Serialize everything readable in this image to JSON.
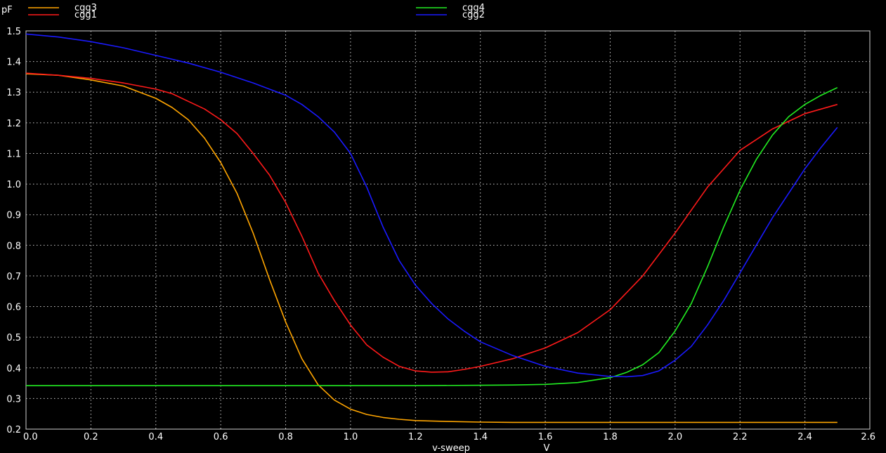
{
  "chart_data": {
    "type": "line",
    "title": "",
    "xlabel": "v-sweep",
    "xunit": "V",
    "ylabel": "",
    "yunit": "pF",
    "xlim": [
      0.0,
      2.6
    ],
    "ylim": [
      0.2,
      1.5
    ],
    "xticks": [
      "0.0",
      "0.2",
      "0.4",
      "0.6",
      "0.8",
      "1.0",
      "1.2",
      "1.4",
      "1.6",
      "1.8",
      "2.0",
      "2.2",
      "2.4",
      "2.6"
    ],
    "yticks": [
      "0.2",
      "0.3",
      "0.4",
      "0.5",
      "0.6",
      "0.7",
      "0.8",
      "0.9",
      "1.0",
      "1.1",
      "1.2",
      "1.3",
      "1.4",
      "1.5"
    ],
    "grid": true,
    "legend_position": "top",
    "background": "#000000",
    "series": [
      {
        "name": "cgg3",
        "color": "#ffa500",
        "x": [
          0.0,
          0.1,
          0.2,
          0.3,
          0.4,
          0.45,
          0.5,
          0.55,
          0.6,
          0.65,
          0.7,
          0.75,
          0.8,
          0.85,
          0.9,
          0.95,
          1.0,
          1.05,
          1.1,
          1.15,
          1.2,
          1.3,
          1.4,
          1.5,
          1.6,
          1.8,
          2.0,
          2.2,
          2.4,
          2.5
        ],
        "y": [
          1.36,
          1.355,
          1.34,
          1.32,
          1.28,
          1.25,
          1.21,
          1.15,
          1.07,
          0.97,
          0.84,
          0.69,
          0.55,
          0.43,
          0.345,
          0.295,
          0.265,
          0.248,
          0.238,
          0.232,
          0.228,
          0.225,
          0.223,
          0.222,
          0.222,
          0.222,
          0.222,
          0.222,
          0.222,
          0.222
        ]
      },
      {
        "name": "cgg1",
        "color": "#ff1a1a",
        "x": [
          0.0,
          0.1,
          0.2,
          0.3,
          0.4,
          0.45,
          0.5,
          0.55,
          0.6,
          0.65,
          0.7,
          0.75,
          0.8,
          0.85,
          0.9,
          0.95,
          1.0,
          1.05,
          1.1,
          1.15,
          1.2,
          1.25,
          1.3,
          1.35,
          1.4,
          1.5,
          1.6,
          1.7,
          1.8,
          1.9,
          2.0,
          2.1,
          2.2,
          2.3,
          2.4,
          2.5
        ],
        "y": [
          1.362,
          1.355,
          1.345,
          1.33,
          1.31,
          1.295,
          1.27,
          1.245,
          1.21,
          1.165,
          1.1,
          1.03,
          0.94,
          0.83,
          0.71,
          0.62,
          0.54,
          0.475,
          0.435,
          0.405,
          0.39,
          0.386,
          0.387,
          0.395,
          0.405,
          0.43,
          0.465,
          0.515,
          0.59,
          0.7,
          0.84,
          0.99,
          1.11,
          1.18,
          1.23,
          1.26
        ]
      },
      {
        "name": "cgg4",
        "color": "#22ee22",
        "x": [
          0.0,
          0.2,
          0.4,
          0.6,
          0.8,
          1.0,
          1.2,
          1.4,
          1.5,
          1.6,
          1.7,
          1.8,
          1.85,
          1.9,
          1.95,
          2.0,
          2.05,
          2.1,
          2.15,
          2.2,
          2.25,
          2.3,
          2.35,
          2.4,
          2.45,
          2.5
        ],
        "y": [
          0.342,
          0.342,
          0.342,
          0.342,
          0.342,
          0.342,
          0.342,
          0.343,
          0.344,
          0.346,
          0.352,
          0.368,
          0.385,
          0.41,
          0.45,
          0.52,
          0.61,
          0.73,
          0.86,
          0.98,
          1.08,
          1.16,
          1.22,
          1.26,
          1.29,
          1.315
        ]
      },
      {
        "name": "cgg2",
        "color": "#1a1aff",
        "x": [
          0.0,
          0.1,
          0.2,
          0.3,
          0.4,
          0.5,
          0.6,
          0.7,
          0.8,
          0.85,
          0.9,
          0.95,
          1.0,
          1.05,
          1.1,
          1.15,
          1.2,
          1.25,
          1.3,
          1.35,
          1.4,
          1.5,
          1.6,
          1.7,
          1.8,
          1.85,
          1.9,
          1.95,
          2.0,
          2.05,
          2.1,
          2.15,
          2.2,
          2.25,
          2.3,
          2.35,
          2.4,
          2.45,
          2.5
        ],
        "y": [
          1.49,
          1.48,
          1.465,
          1.445,
          1.42,
          1.395,
          1.365,
          1.33,
          1.29,
          1.26,
          1.22,
          1.17,
          1.1,
          0.99,
          0.86,
          0.75,
          0.67,
          0.61,
          0.56,
          0.52,
          0.485,
          0.44,
          0.405,
          0.383,
          0.372,
          0.371,
          0.375,
          0.39,
          0.425,
          0.47,
          0.54,
          0.62,
          0.71,
          0.8,
          0.89,
          0.97,
          1.05,
          1.12,
          1.185
        ]
      }
    ]
  }
}
